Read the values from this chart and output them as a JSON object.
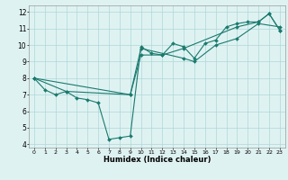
{
  "xlabel": "Humidex (Indice chaleur)",
  "bg_color": "#dff2f2",
  "grid_color": "#aed8d8",
  "line_color": "#1a7a6e",
  "xlim": [
    -0.5,
    23.5
  ],
  "ylim": [
    3.8,
    12.4
  ],
  "yticks": [
    4,
    5,
    6,
    7,
    8,
    9,
    10,
    11,
    12
  ],
  "xticks": [
    0,
    1,
    2,
    3,
    4,
    5,
    6,
    7,
    8,
    9,
    10,
    11,
    12,
    13,
    14,
    15,
    16,
    17,
    18,
    19,
    20,
    21,
    22,
    23
  ],
  "lines": [
    {
      "x": [
        0,
        1,
        2,
        3,
        4,
        5,
        6,
        7,
        8,
        9,
        10,
        11,
        12,
        13,
        14,
        15,
        16,
        17,
        18,
        19,
        20,
        21,
        22,
        23
      ],
      "y": [
        8.0,
        7.3,
        7.0,
        7.2,
        6.8,
        6.7,
        6.5,
        4.3,
        4.4,
        4.5,
        9.9,
        9.5,
        9.4,
        10.1,
        9.9,
        9.2,
        10.1,
        10.3,
        11.1,
        11.3,
        11.4,
        11.4,
        11.9,
        10.9
      ]
    },
    {
      "x": [
        0,
        3,
        9,
        10,
        14,
        15,
        17,
        19,
        21,
        23
      ],
      "y": [
        8.0,
        7.2,
        7.0,
        9.8,
        9.2,
        9.0,
        10.0,
        10.4,
        11.3,
        11.1
      ]
    },
    {
      "x": [
        0,
        9,
        10,
        12,
        14,
        19,
        21,
        22,
        23
      ],
      "y": [
        8.0,
        7.0,
        9.4,
        9.4,
        9.8,
        11.1,
        11.4,
        11.9,
        10.9
      ]
    }
  ]
}
